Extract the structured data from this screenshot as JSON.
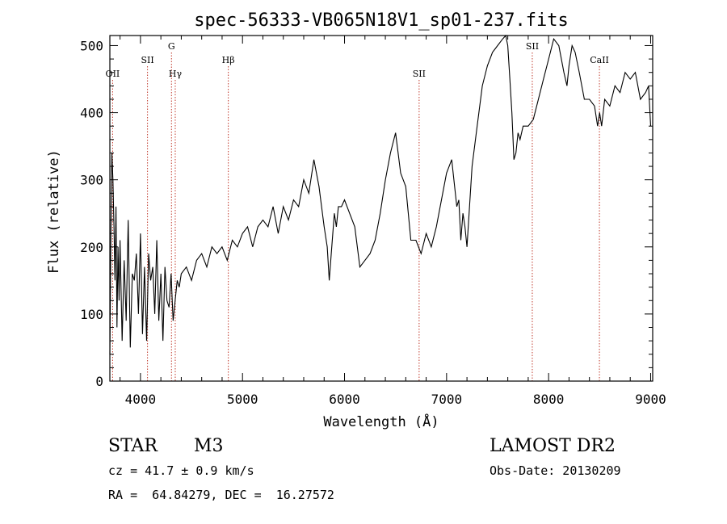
{
  "chart_data": {
    "type": "line",
    "title": "spec-56333-VB065N18V1_sp01-237.fits",
    "xlabel": "Wavelength (Å)",
    "ylabel": "Flux (relative)",
    "xlim": [
      3700,
      9020
    ],
    "ylim": [
      0,
      515
    ],
    "xticks": [
      4000,
      5000,
      6000,
      7000,
      8000,
      9000
    ],
    "yticks": [
      0,
      100,
      200,
      300,
      400,
      500
    ],
    "grid": false,
    "line_color": "#000000",
    "marker_color": "#c0392b",
    "lines": [
      {
        "label": "OII",
        "x": 3727,
        "row": 2
      },
      {
        "label": "SII",
        "x": 4069,
        "row": 1
      },
      {
        "label": "G",
        "x": 4304,
        "row": 0
      },
      {
        "label": "Hγ",
        "x": 4341,
        "row": 2
      },
      {
        "label": "Hβ",
        "x": 4861,
        "row": 1
      },
      {
        "label": "SII",
        "x": 6731,
        "row": 2
      },
      {
        "label": "SII",
        "x": 7840,
        "row": 0
      },
      {
        "label": "CaII",
        "x": 8498,
        "row": 1
      }
    ],
    "series": [
      {
        "x": [
          3700,
          3710,
          3720,
          3730,
          3740,
          3750,
          3760,
          3770,
          3780,
          3790,
          3800,
          3820,
          3840,
          3860,
          3880,
          3900,
          3920,
          3940,
          3960,
          3980,
          4000,
          4020,
          4040,
          4060,
          4080,
          4100,
          4120,
          4140,
          4160,
          4180,
          4200,
          4220,
          4240,
          4260,
          4280,
          4300,
          4320,
          4340,
          4360,
          4380,
          4400,
          4450,
          4500,
          4550,
          4600,
          4650,
          4700,
          4750,
          4800,
          4850,
          4900,
          4950,
          5000,
          5050,
          5100,
          5150,
          5200,
          5250,
          5300,
          5350,
          5400,
          5450,
          5500,
          5550,
          5600,
          5650,
          5700,
          5750,
          5800,
          5830,
          5850,
          5870,
          5900,
          5920,
          5940,
          5970,
          6000,
          6050,
          6100,
          6150,
          6200,
          6250,
          6300,
          6350,
          6400,
          6450,
          6500,
          6550,
          6600,
          6650,
          6700,
          6750,
          6800,
          6850,
          6900,
          6950,
          7000,
          7050,
          7100,
          7120,
          7140,
          7160,
          7180,
          7200,
          7250,
          7300,
          7350,
          7400,
          7450,
          7500,
          7550,
          7580,
          7600,
          7620,
          7640,
          7660,
          7680,
          7700,
          7720,
          7750,
          7800,
          7850,
          7900,
          7950,
          8000,
          8050,
          8100,
          8150,
          8180,
          8200,
          8230,
          8260,
          8300,
          8350,
          8400,
          8450,
          8480,
          8500,
          8520,
          8550,
          8600,
          8650,
          8700,
          8750,
          8800,
          8850,
          8900,
          8950,
          8980,
          9000
        ],
        "y": [
          40,
          220,
          340,
          300,
          230,
          150,
          260,
          80,
          200,
          120,
          210,
          60,
          180,
          90,
          240,
          50,
          160,
          150,
          190,
          100,
          220,
          70,
          170,
          60,
          190,
          150,
          170,
          100,
          210,
          90,
          160,
          60,
          170,
          120,
          110,
          160,
          90,
          120,
          150,
          140,
          160,
          170,
          150,
          180,
          190,
          170,
          200,
          190,
          200,
          180,
          210,
          200,
          220,
          230,
          200,
          230,
          240,
          230,
          260,
          220,
          260,
          240,
          270,
          260,
          300,
          280,
          330,
          290,
          230,
          200,
          150,
          190,
          250,
          230,
          260,
          260,
          270,
          250,
          230,
          170,
          180,
          190,
          210,
          250,
          300,
          340,
          370,
          310,
          290,
          210,
          210,
          190,
          220,
          200,
          230,
          270,
          310,
          330,
          260,
          270,
          210,
          250,
          230,
          200,
          320,
          380,
          440,
          470,
          490,
          500,
          510,
          520,
          500,
          450,
          400,
          330,
          340,
          370,
          360,
          380,
          380,
          390,
          420,
          450,
          480,
          510,
          500,
          460,
          440,
          470,
          500,
          490,
          460,
          420,
          420,
          410,
          380,
          400,
          380,
          420,
          410,
          440,
          430,
          460,
          450,
          460,
          420,
          430,
          440,
          380
        ]
      }
    ]
  },
  "info": {
    "object_class": "STAR",
    "subclass": "M3",
    "survey": "LAMOST DR2",
    "cz": "cz = 41.7 ± 0.9 km/s",
    "obs_date": "Obs-Date: 20130209",
    "radec": "RA =  64.84279, DEC =  16.27572"
  }
}
